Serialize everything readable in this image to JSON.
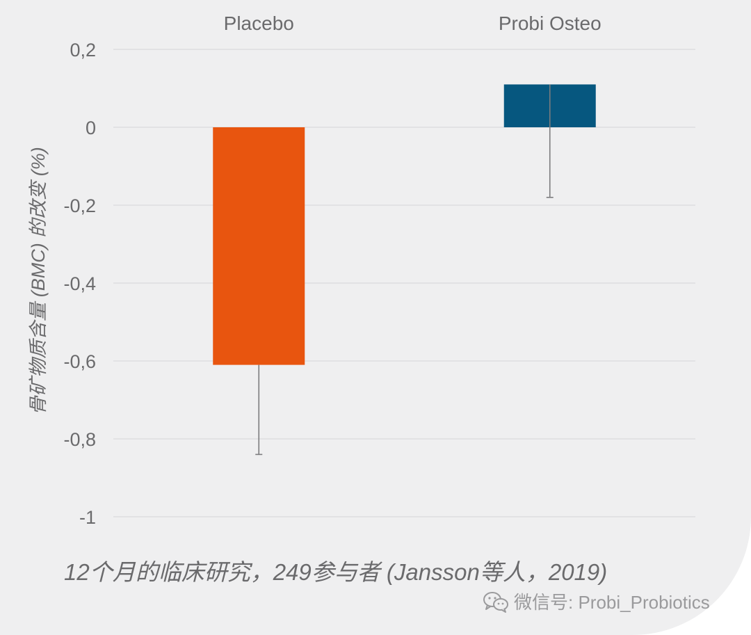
{
  "chart_data": {
    "type": "bar",
    "title": "",
    "categories": [
      "Placebo",
      "Probi Osteo"
    ],
    "series": [
      {
        "values": [
          -0.61,
          0.11
        ]
      }
    ],
    "error_bars": {
      "low": [
        -0.84,
        -0.18
      ],
      "high": [
        -0.61,
        0.11
      ]
    },
    "bar_colors": [
      "#e8550f",
      "#06577f"
    ],
    "ylabel": "骨矿物质含量 (BMC) 的改变 (%)",
    "xlabel": "",
    "ylim": [
      -1,
      0.2
    ],
    "yticks": [
      0.2,
      0,
      -0.2,
      -0.4,
      -0.6,
      -0.8,
      -1
    ],
    "ytick_labels": [
      "0,2",
      "0",
      "-0,2",
      "-0,4",
      "-0,6",
      "-0,8",
      "-1"
    ],
    "category_labels_position": "top",
    "grid": true,
    "legend": "none"
  },
  "caption": "12个月的临床研究，249参与者 (Jansson等人，2019)",
  "watermark": {
    "icon": "wechat-icon",
    "text": "微信号: Probi_Probiotics"
  },
  "colors": {
    "background": "#efeff0",
    "text": "#6a6a6c",
    "grid": "#dadadc"
  }
}
